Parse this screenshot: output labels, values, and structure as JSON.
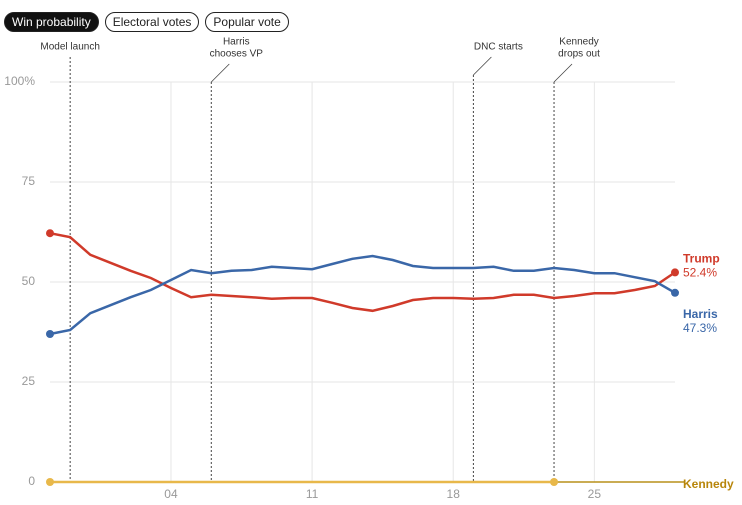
{
  "tabs": [
    "Win probability",
    "Electoral votes",
    "Popular vote"
  ],
  "chart_data": {
    "type": "line",
    "x": [
      -2,
      -1,
      0,
      1,
      2,
      3,
      4,
      5,
      6,
      7,
      8,
      9,
      10,
      11,
      12,
      13,
      14,
      15,
      16,
      17,
      18,
      19,
      20,
      21,
      22,
      23,
      24,
      25,
      26,
      27,
      28,
      29
    ],
    "xlim": [
      -2,
      29
    ],
    "xticks": [
      {
        "value": 4,
        "label": "04"
      },
      11,
      18,
      25
    ],
    "ylim": [
      0,
      100
    ],
    "yticks": [
      0,
      25,
      50,
      75,
      {
        "value": 100,
        "label": "100%"
      }
    ],
    "grid": true,
    "series": [
      {
        "name": "Trump",
        "color": "#d03a2a",
        "value_labels": "52.4%",
        "values": [
          62.2,
          61.2,
          56.8,
          54.8,
          52.8,
          51,
          48.5,
          46.2,
          46.8,
          46.5,
          46.2,
          45.8,
          46,
          46,
          44.8,
          43.5,
          42.8,
          44,
          45.5,
          46,
          46,
          45.8,
          46,
          46.8,
          46.8,
          46,
          46.5,
          47.2,
          47.2,
          48,
          49,
          52.4
        ]
      },
      {
        "name": "Harris",
        "color": "#3a67a8",
        "value_labels": "47.3%",
        "values": [
          37,
          38,
          42.2,
          44.2,
          46.2,
          48,
          50.5,
          53,
          52.2,
          52.8,
          53,
          53.8,
          53.5,
          53.2,
          54.5,
          55.8,
          56.5,
          55.5,
          54,
          53.5,
          53.5,
          53.5,
          53.8,
          52.8,
          52.8,
          53.5,
          53,
          52.2,
          52.2,
          51.2,
          50.2,
          47.3
        ]
      },
      {
        "name": "Kennedy",
        "color": "#e8b84a",
        "values": [
          0,
          0,
          0,
          0,
          0,
          0,
          0,
          0,
          0,
          0,
          0,
          0,
          0,
          0,
          0,
          0,
          0,
          0,
          0,
          0,
          0,
          0,
          0,
          0,
          0,
          0,
          null,
          null,
          null,
          null,
          null,
          null
        ]
      }
    ],
    "annotations": [
      {
        "x": -1,
        "lines": [
          "Model launch"
        ]
      },
      {
        "x": 6,
        "lines": [
          "Harris",
          "chooses VP"
        ]
      },
      {
        "x": 19,
        "lines": [
          "DNC starts"
        ]
      },
      {
        "x": 23,
        "lines": [
          "Kennedy",
          "drops out"
        ]
      }
    ]
  }
}
